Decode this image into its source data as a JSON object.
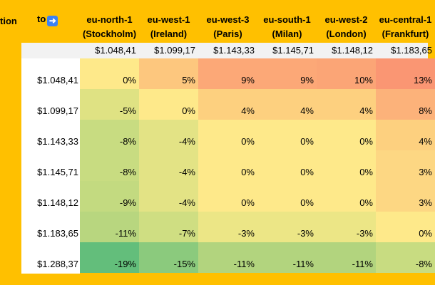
{
  "header": {
    "left_label": "tion",
    "to_label": "to",
    "to_icon": "right-arrow-icon"
  },
  "columns": [
    {
      "region": "eu-north-1",
      "city": "(Stockholm)",
      "price": "$1.048,41"
    },
    {
      "region": "eu-west-1",
      "city": "(Ireland)",
      "price": "$1.099,17"
    },
    {
      "region": "eu-west-3",
      "city": "(Paris)",
      "price": "$1.143,33"
    },
    {
      "region": "eu-south-1",
      "city": "(Milan)",
      "price": "$1.145,71"
    },
    {
      "region": "eu-west-2",
      "city": "(London)",
      "price": "$1.148,12"
    },
    {
      "region": "eu-central-1",
      "city": "(Frankfurt)",
      "price": "$1.183,65"
    }
  ],
  "rows": [
    {
      "label": "$1.048,41",
      "cells": [
        "0%",
        "5%",
        "9%",
        "9%",
        "10%",
        "13%"
      ],
      "colors": [
        "#FEE98A",
        "#FDC77E",
        "#FCA877",
        "#FCA877",
        "#FBA576",
        "#FA9673"
      ]
    },
    {
      "label": "$1.099,17",
      "cells": [
        "-5%",
        "0%",
        "4%",
        "4%",
        "4%",
        "8%"
      ],
      "colors": [
        "#DFE283",
        "#FEE98A",
        "#FDD07F",
        "#FDD07F",
        "#FDD07F",
        "#FCB27A"
      ]
    },
    {
      "label": "$1.143,33",
      "cells": [
        "-8%",
        "-4%",
        "0%",
        "0%",
        "0%",
        "4%"
      ],
      "colors": [
        "#C8DC81",
        "#E3E385",
        "#FEE98A",
        "#FEE98A",
        "#FEE98A",
        "#FDD07F"
      ]
    },
    {
      "label": "$1.145,71",
      "cells": [
        "-8%",
        "-4%",
        "0%",
        "0%",
        "0%",
        "3%"
      ],
      "colors": [
        "#C8DC81",
        "#E3E385",
        "#FEE98A",
        "#FEE98A",
        "#FEE98A",
        "#FDD783"
      ]
    },
    {
      "label": "$1.148,12",
      "cells": [
        "-9%",
        "-4%",
        "0%",
        "0%",
        "0%",
        "3%"
      ],
      "colors": [
        "#C3DA80",
        "#E3E385",
        "#FEE98A",
        "#FEE98A",
        "#FEE98A",
        "#FDD783"
      ]
    },
    {
      "label": "$1.183,65",
      "cells": [
        "-11%",
        "-7%",
        "-3%",
        "-3%",
        "-3%",
        "0%"
      ],
      "colors": [
        "#B8D67F",
        "#CFDE82",
        "#ECE686",
        "#ECE686",
        "#ECE686",
        "#FEE98A"
      ]
    },
    {
      "label": "$1.288,37",
      "cells": [
        "-19%",
        "-15%",
        "-11%",
        "-11%",
        "-11%",
        "-8%"
      ],
      "colors": [
        "#63BE7B",
        "#8BCA7D",
        "#B2D47E",
        "#B2D47E",
        "#B2D47E",
        "#C8DC81"
      ]
    }
  ]
}
